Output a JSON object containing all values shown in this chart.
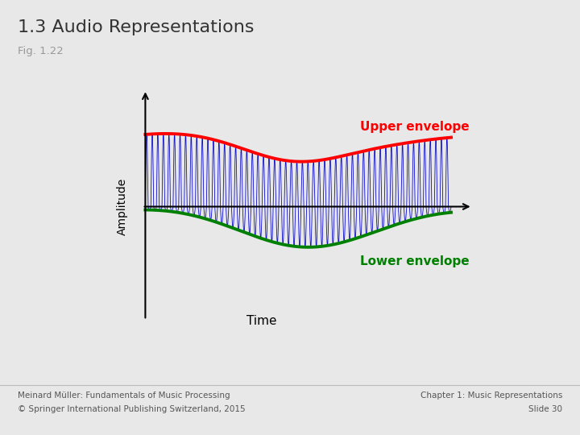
{
  "title": "1.3 Audio Representations",
  "subtitle": "Fig. 1.22",
  "title_color": "#333333",
  "subtitle_color": "#999999",
  "bg_color": "#e8e8e8",
  "plot_bg_color": "#ffffff",
  "upper_envelope_color": "#ff0000",
  "lower_envelope_color": "#008000",
  "wave_color": "#0000cc",
  "upper_label": "Upper envelope",
  "lower_label": "Lower envelope",
  "xlabel": "Time",
  "ylabel": "Amplitude",
  "footer_left1": "Meinard Müller: Fundamentals of Music Processing",
  "footer_left2": "© Springer International Publishing Switzerland, 2015",
  "footer_right1": "Chapter 1: Music Representations",
  "footer_right2": "Slide 30",
  "footer_color": "#555555",
  "footer_fontsize": 7.5
}
